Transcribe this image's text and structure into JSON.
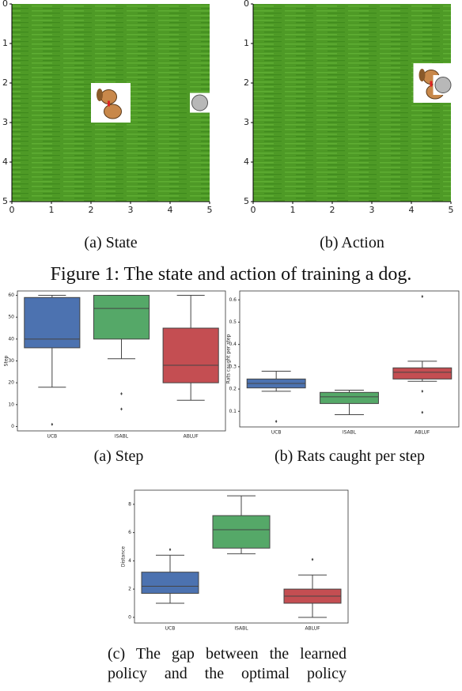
{
  "chart_data": [
    {
      "type": "image_grid",
      "caption": "(a)  State",
      "xlim": [
        0,
        5
      ],
      "ylim": [
        0,
        5
      ],
      "xticks": [
        0,
        1,
        2,
        3,
        4,
        5
      ],
      "yticks": [
        0,
        1,
        2,
        3,
        4,
        5
      ]
    },
    {
      "type": "image_grid",
      "caption": "(b)  Action",
      "xlim": [
        0,
        5
      ],
      "ylim": [
        0,
        5
      ],
      "xticks": [
        0,
        1,
        2,
        3,
        4,
        5
      ],
      "yticks": [
        0,
        1,
        2,
        3,
        4,
        5
      ]
    },
    {
      "type": "box",
      "caption": "(a)  Step",
      "ylabel": "Step",
      "categories": [
        "UCB",
        "ISABL",
        "ABLUF"
      ],
      "colors": [
        "#4c72b0",
        "#55a868",
        "#c44e52"
      ],
      "boxes": [
        {
          "min": 18,
          "q1": 36,
          "median": 40,
          "q3": 59,
          "max": 60,
          "outliers": [
            1
          ]
        },
        {
          "min": 31,
          "q1": 40,
          "median": 54,
          "q3": 60,
          "max": 60,
          "outliers": [
            15,
            8
          ]
        },
        {
          "min": 12,
          "q1": 20,
          "median": 28,
          "q3": 45,
          "max": 60,
          "outliers": []
        }
      ],
      "ylim": [
        -2,
        62
      ],
      "yticks": [
        0,
        10,
        20,
        30,
        40,
        50,
        60
      ]
    },
    {
      "type": "box",
      "caption": "(b)  Rats caught per step",
      "ylabel": "Rats caught per step",
      "categories": [
        "UCB",
        "ISABL",
        "ABLUF"
      ],
      "colors": [
        "#4c72b0",
        "#55a868",
        "#c44e52"
      ],
      "boxes": [
        {
          "min": 0.19,
          "q1": 0.205,
          "median": 0.225,
          "q3": 0.245,
          "max": 0.28,
          "outliers": [
            0.055
          ]
        },
        {
          "min": 0.085,
          "q1": 0.135,
          "median": 0.165,
          "q3": 0.185,
          "max": 0.195,
          "outliers": []
        },
        {
          "min": 0.235,
          "q1": 0.245,
          "median": 0.275,
          "q3": 0.295,
          "max": 0.325,
          "outliers": [
            0.615,
            0.19,
            0.095
          ]
        }
      ],
      "ylim": [
        0.03,
        0.64
      ],
      "yticks": [
        0.1,
        0.2,
        0.3,
        0.4,
        0.5,
        0.6
      ]
    },
    {
      "type": "box",
      "caption": "(c)  The gap between the learned policy and the optimal policy",
      "ylabel": "Distance",
      "categories": [
        "UCB",
        "ISABL",
        "ABLUF"
      ],
      "colors": [
        "#4c72b0",
        "#55a868",
        "#c44e52"
      ],
      "boxes": [
        {
          "min": 1.0,
          "q1": 1.7,
          "median": 2.2,
          "q3": 3.2,
          "max": 4.4,
          "outliers": [
            4.8
          ]
        },
        {
          "min": 4.5,
          "q1": 4.9,
          "median": 6.2,
          "q3": 7.2,
          "max": 8.6,
          "outliers": []
        },
        {
          "min": 0.0,
          "q1": 1.0,
          "median": 1.5,
          "q3": 2.0,
          "max": 3.0,
          "outliers": [
            4.1
          ]
        }
      ],
      "ylim": [
        -0.4,
        9.0
      ],
      "yticks": [
        0,
        2,
        4,
        6,
        8
      ]
    }
  ],
  "figure_caption": "Figure 1: The state and action of training a dog."
}
